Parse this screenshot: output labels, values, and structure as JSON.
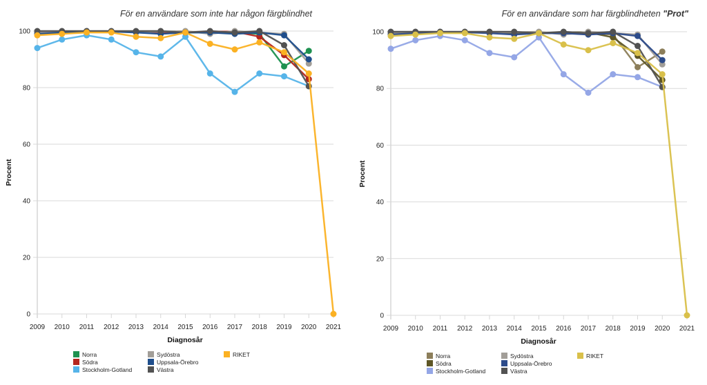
{
  "chart_data": [
    {
      "type": "line",
      "title": "För en användare som inte har någon färgblindhet",
      "title_bold_part": "",
      "xlabel": "Diagnosår",
      "ylabel": "Procent",
      "x": [
        2009,
        2010,
        2011,
        2012,
        2013,
        2014,
        2015,
        2016,
        2017,
        2018,
        2019,
        2020,
        2021
      ],
      "xticks": [
        "2009",
        "2010",
        "2011",
        "2012",
        "2013",
        "2014",
        "2015",
        "2016",
        "2017",
        "2018",
        "2019",
        "2020",
        "2021"
      ],
      "yticks": [
        "0",
        "20",
        "40",
        "60",
        "80",
        "100"
      ],
      "ylim": [
        0,
        100
      ],
      "grid": true,
      "legend_position": "bottom",
      "series": [
        {
          "name": "Norra",
          "color": "#1e9150",
          "values": [
            99.5,
            99.5,
            99.8,
            99.8,
            99.8,
            99.5,
            99.5,
            99.5,
            99.5,
            99.0,
            87.5,
            93.0,
            null
          ]
        },
        {
          "name": "Södra",
          "color": "#b5261e",
          "values": [
            99.5,
            99.8,
            99.8,
            99.8,
            99.8,
            99.5,
            99.5,
            99.8,
            99.8,
            98.0,
            91.5,
            83.0,
            null
          ]
        },
        {
          "name": "Stockholm-Gotland",
          "color": "#56b4e9",
          "values": [
            94.0,
            97.0,
            98.5,
            97.0,
            92.5,
            91.0,
            98.0,
            85.0,
            78.5,
            85.0,
            84.0,
            80.5,
            null
          ]
        },
        {
          "name": "Sydöstra",
          "color": "#a29e98",
          "values": [
            99.5,
            99.8,
            99.8,
            99.8,
            99.8,
            99.8,
            100.0,
            99.0,
            100.0,
            99.5,
            99.0,
            88.5,
            null
          ]
        },
        {
          "name": "Uppsala-Örebro",
          "color": "#1f4e8c",
          "values": [
            99.0,
            99.5,
            99.8,
            99.8,
            99.5,
            99.0,
            99.5,
            99.5,
            99.0,
            99.5,
            98.5,
            90.0,
            null
          ]
        },
        {
          "name": "Västra",
          "color": "#525252",
          "values": [
            100.0,
            100.0,
            100.0,
            100.0,
            100.0,
            100.0,
            99.5,
            100.0,
            99.5,
            100.0,
            95.0,
            80.5,
            null
          ]
        },
        {
          "name": "RIKET",
          "color": "#fbb123",
          "values": [
            98.5,
            99.0,
            99.5,
            99.5,
            98.0,
            97.5,
            99.5,
            95.5,
            93.5,
            96.0,
            92.5,
            85.0,
            0.0
          ]
        }
      ]
    },
    {
      "type": "line",
      "title": "För en användare som har färgblindheten ",
      "title_bold_part": "\"Prot\"",
      "xlabel": "Diagnosår",
      "ylabel": "Procent",
      "x": [
        2009,
        2010,
        2011,
        2012,
        2013,
        2014,
        2015,
        2016,
        2017,
        2018,
        2019,
        2020,
        2021
      ],
      "xticks": [
        "2009",
        "2010",
        "2011",
        "2012",
        "2013",
        "2014",
        "2015",
        "2016",
        "2017",
        "2018",
        "2019",
        "2020",
        "2021"
      ],
      "yticks": [
        "0",
        "20",
        "40",
        "60",
        "80",
        "100"
      ],
      "ylim": [
        0,
        100
      ],
      "grid": true,
      "legend_position": "bottom",
      "series": [
        {
          "name": "Norra",
          "color": "#8c7e5a",
          "values": [
            99.5,
            99.5,
            99.8,
            99.8,
            99.8,
            99.5,
            99.5,
            99.5,
            99.5,
            99.0,
            87.5,
            93.0,
            null
          ]
        },
        {
          "name": "Södra",
          "color": "#5e5626",
          "values": [
            99.5,
            99.8,
            99.8,
            99.8,
            99.8,
            99.5,
            99.5,
            99.8,
            99.8,
            98.0,
            91.5,
            83.0,
            null
          ]
        },
        {
          "name": "Stockholm-Gotland",
          "color": "#94a6e6",
          "values": [
            94.0,
            97.0,
            98.5,
            97.0,
            92.5,
            91.0,
            98.0,
            85.0,
            78.5,
            85.0,
            84.0,
            80.5,
            null
          ]
        },
        {
          "name": "Sydöstra",
          "color": "#a29e98",
          "values": [
            99.5,
            99.8,
            99.8,
            99.8,
            99.8,
            99.8,
            100.0,
            99.0,
            100.0,
            99.5,
            99.0,
            88.5,
            null
          ]
        },
        {
          "name": "Uppsala-Örebro",
          "color": "#2c4b8a",
          "values": [
            99.0,
            99.5,
            99.8,
            99.8,
            99.5,
            99.0,
            99.5,
            99.5,
            99.0,
            99.5,
            98.5,
            90.0,
            null
          ]
        },
        {
          "name": "Västra",
          "color": "#525252",
          "values": [
            100.0,
            100.0,
            100.0,
            100.0,
            100.0,
            100.0,
            99.5,
            100.0,
            99.5,
            100.0,
            95.0,
            80.5,
            null
          ]
        },
        {
          "name": "RIKET",
          "color": "#d9c04a",
          "values": [
            98.5,
            99.0,
            99.5,
            99.5,
            98.0,
            97.5,
            99.5,
            95.5,
            93.5,
            96.0,
            92.5,
            85.0,
            0.0
          ]
        }
      ]
    }
  ]
}
